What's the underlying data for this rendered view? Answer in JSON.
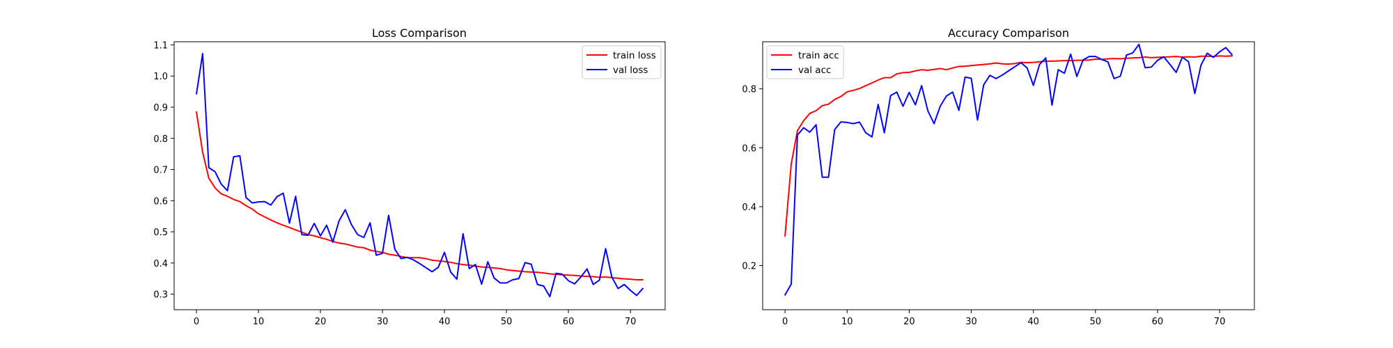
{
  "chart_data": [
    {
      "type": "line",
      "title": "Loss Comparison",
      "xlabel": "",
      "ylabel": "",
      "xlim": [
        -3.6,
        75.6
      ],
      "ylim": [
        0.25,
        1.11
      ],
      "xticks": [
        0,
        10,
        20,
        30,
        40,
        50,
        60,
        70
      ],
      "yticks": [
        0.3,
        0.4,
        0.5,
        0.6,
        0.7,
        0.8,
        0.9,
        1.0,
        1.1
      ],
      "ytick_format": 1,
      "grid": false,
      "legend_position": "top-right",
      "series": [
        {
          "name": "train loss",
          "color": "#ff0000",
          "values": [
            0.885,
            0.755,
            0.672,
            0.641,
            0.622,
            0.614,
            0.604,
            0.597,
            0.584,
            0.573,
            0.558,
            0.548,
            0.538,
            0.529,
            0.521,
            0.514,
            0.506,
            0.499,
            0.491,
            0.487,
            0.481,
            0.476,
            0.469,
            0.464,
            0.461,
            0.456,
            0.451,
            0.449,
            0.441,
            0.437,
            0.434,
            0.428,
            0.425,
            0.421,
            0.417,
            0.417,
            0.417,
            0.414,
            0.409,
            0.407,
            0.405,
            0.402,
            0.398,
            0.395,
            0.393,
            0.39,
            0.387,
            0.386,
            0.384,
            0.382,
            0.378,
            0.376,
            0.374,
            0.372,
            0.371,
            0.37,
            0.368,
            0.365,
            0.364,
            0.362,
            0.361,
            0.36,
            0.358,
            0.357,
            0.356,
            0.354,
            0.355,
            0.353,
            0.351,
            0.349,
            0.348,
            0.346,
            0.346
          ]
        },
        {
          "name": "val loss",
          "color": "#0000ff",
          "values": [
            0.943,
            1.072,
            0.706,
            0.693,
            0.653,
            0.632,
            0.741,
            0.744,
            0.61,
            0.593,
            0.596,
            0.597,
            0.586,
            0.613,
            0.624,
            0.528,
            0.614,
            0.491,
            0.489,
            0.527,
            0.487,
            0.521,
            0.467,
            0.535,
            0.571,
            0.523,
            0.491,
            0.482,
            0.529,
            0.425,
            0.431,
            0.553,
            0.444,
            0.414,
            0.418,
            0.41,
            0.398,
            0.385,
            0.372,
            0.386,
            0.434,
            0.371,
            0.348,
            0.494,
            0.382,
            0.395,
            0.332,
            0.404,
            0.352,
            0.336,
            0.336,
            0.346,
            0.35,
            0.401,
            0.396,
            0.331,
            0.326,
            0.292,
            0.367,
            0.364,
            0.343,
            0.333,
            0.355,
            0.381,
            0.331,
            0.345,
            0.446,
            0.355,
            0.318,
            0.331,
            0.312,
            0.296,
            0.318
          ]
        }
      ]
    },
    {
      "type": "line",
      "title": "Accuracy Comparison",
      "xlabel": "",
      "ylabel": "",
      "xlim": [
        -3.6,
        75.6
      ],
      "ylim": [
        0.05,
        0.96
      ],
      "xticks": [
        0,
        10,
        20,
        30,
        40,
        50,
        60,
        70
      ],
      "yticks": [
        0.2,
        0.4,
        0.6,
        0.8
      ],
      "ytick_format": 1,
      "grid": false,
      "legend_position": "top-left",
      "series": [
        {
          "name": "train acc",
          "color": "#ff0000",
          "values": [
            0.3,
            0.545,
            0.658,
            0.692,
            0.717,
            0.726,
            0.743,
            0.748,
            0.764,
            0.774,
            0.79,
            0.795,
            0.801,
            0.811,
            0.82,
            0.83,
            0.838,
            0.838,
            0.851,
            0.855,
            0.856,
            0.861,
            0.865,
            0.863,
            0.866,
            0.869,
            0.865,
            0.871,
            0.876,
            0.877,
            0.879,
            0.881,
            0.883,
            0.885,
            0.888,
            0.885,
            0.884,
            0.886,
            0.89,
            0.889,
            0.89,
            0.892,
            0.894,
            0.894,
            0.895,
            0.896,
            0.896,
            0.897,
            0.897,
            0.898,
            0.901,
            0.9,
            0.902,
            0.903,
            0.902,
            0.904,
            0.905,
            0.906,
            0.908,
            0.906,
            0.907,
            0.908,
            0.909,
            0.91,
            0.908,
            0.909,
            0.908,
            0.911,
            0.911,
            0.91,
            0.912,
            0.911,
            0.912
          ]
        },
        {
          "name": "val acc",
          "color": "#0000ff",
          "values": [
            0.1,
            0.137,
            0.643,
            0.668,
            0.653,
            0.678,
            0.5,
            0.5,
            0.662,
            0.688,
            0.686,
            0.682,
            0.687,
            0.651,
            0.637,
            0.747,
            0.651,
            0.777,
            0.789,
            0.741,
            0.788,
            0.746,
            0.811,
            0.726,
            0.682,
            0.741,
            0.776,
            0.789,
            0.727,
            0.84,
            0.836,
            0.694,
            0.814,
            0.846,
            0.835,
            0.847,
            0.861,
            0.875,
            0.889,
            0.871,
            0.812,
            0.883,
            0.905,
            0.745,
            0.865,
            0.853,
            0.918,
            0.842,
            0.898,
            0.91,
            0.91,
            0.9,
            0.892,
            0.835,
            0.843,
            0.915,
            0.922,
            0.951,
            0.872,
            0.874,
            0.897,
            0.909,
            0.883,
            0.856,
            0.908,
            0.892,
            0.784,
            0.881,
            0.921,
            0.907,
            0.926,
            0.94,
            0.916
          ]
        }
      ]
    }
  ]
}
